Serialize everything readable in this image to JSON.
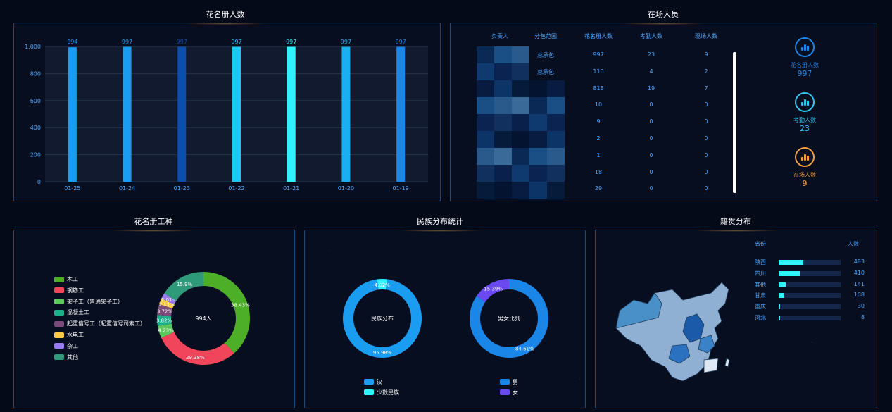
{
  "titles": {
    "roster_count": "花名册人数",
    "onsite": "在场人员",
    "roster_trade": "花名册工种",
    "ethnicity": "民族分布统计",
    "native_place": "籍贯分布"
  },
  "bar_chart": {
    "type": "bar",
    "categories": [
      "01-25",
      "01-24",
      "01-23",
      "01-22",
      "01-21",
      "01-20",
      "01-19"
    ],
    "values": [
      994,
      997,
      997,
      997,
      997,
      997,
      997
    ],
    "y_ticks": [
      "0",
      "200",
      "400",
      "600",
      "800",
      "1,000"
    ],
    "ylim": [
      0,
      1000
    ],
    "colors": [
      "#1a9cf0",
      "#1a9cf0",
      "#0a4fae",
      "#1ac8f5",
      "#2ef3ff",
      "#1ab0f0",
      "#1a86e8"
    ]
  },
  "onsite_table": {
    "headers": [
      "负责人",
      "分包范围",
      "花名册人数",
      "考勤人数",
      "现场人数"
    ],
    "rows": [
      {
        "scope": "总承包",
        "roster": "997",
        "attendance": "23",
        "onsite": "9"
      },
      {
        "scope": "总承包",
        "roster": "110",
        "attendance": "4",
        "onsite": "2"
      },
      {
        "scope": "",
        "roster": "818",
        "attendance": "19",
        "onsite": "7"
      },
      {
        "scope": "",
        "roster": "10",
        "attendance": "0",
        "onsite": "0"
      },
      {
        "scope": "",
        "roster": "9",
        "attendance": "0",
        "onsite": "0"
      },
      {
        "scope": "",
        "roster": "2",
        "attendance": "0",
        "onsite": "0"
      },
      {
        "scope": "",
        "roster": "1",
        "attendance": "0",
        "onsite": "0"
      },
      {
        "scope": "",
        "roster": "18",
        "attendance": "0",
        "onsite": "0"
      },
      {
        "scope": "",
        "roster": "29",
        "attendance": "0",
        "onsite": "0"
      }
    ]
  },
  "stats": [
    {
      "label": "花名册人数",
      "value": "997",
      "color": "#1a86e8"
    },
    {
      "label": "考勤人数",
      "value": "23",
      "color": "#2ec8f0"
    },
    {
      "label": "在场人数",
      "value": "9",
      "color": "#f5a03c"
    }
  ],
  "trade_chart": {
    "type": "pie",
    "center_label": "994人",
    "legend": [
      {
        "name": "木工",
        "color": "#4caf27"
      },
      {
        "name": "钢筋工",
        "color": "#f0455a"
      },
      {
        "name": "架子工（普通架子工）",
        "color": "#5ac85a"
      },
      {
        "name": "混凝土工",
        "color": "#1bb08a"
      },
      {
        "name": "起重信号工（起重信号司索工）",
        "color": "#7a4a7a"
      },
      {
        "name": "水电工",
        "color": "#ffc845"
      },
      {
        "name": "杂工",
        "color": "#9a7af0"
      },
      {
        "name": "其他",
        "color": "#2e9a7a"
      }
    ],
    "slices": [
      {
        "name": "木工",
        "value": 38.43,
        "label": "38.43%",
        "color": "#4caf27"
      },
      {
        "name": "钢筋工",
        "value": 29.38,
        "label": "29.38%",
        "color": "#f0455a"
      },
      {
        "name": "架子工（普通架子工）",
        "value": 4.23,
        "label": "4.23%",
        "color": "#5ac85a"
      },
      {
        "name": "混凝土工",
        "value": 3.82,
        "label": "3.82%",
        "color": "#1bb08a"
      },
      {
        "name": "起重信号工（起重信号司索工）",
        "value": 3.72,
        "label": "3.72%",
        "color": "#7a4a7a"
      },
      {
        "name": "水电工",
        "value": 2.11,
        "label": "2.11%",
        "color": "#ffc845"
      },
      {
        "name": "杂工",
        "value": 2.01,
        "label": "2.01%",
        "color": "#9a7af0"
      },
      {
        "name": "其他",
        "value": 15.9,
        "label": "15.9%",
        "color": "#2e9a7a"
      }
    ]
  },
  "ethnicity_chart": {
    "type": "pie",
    "center_label": "民族分布",
    "slices": [
      {
        "name": "汉",
        "value": 95.98,
        "label": "95.98%",
        "color": "#1a9cf0"
      },
      {
        "name": "少数民族",
        "value": 4.02,
        "label": "4.02%",
        "color": "#2ef3ff"
      }
    ]
  },
  "gender_chart": {
    "type": "pie",
    "center_label": "男女比列",
    "slices": [
      {
        "name": "男",
        "value": 84.61,
        "label": "84.61%",
        "color": "#1a86e8"
      },
      {
        "name": "女",
        "value": 15.39,
        "label": "15.39%",
        "color": "#6a4af0"
      }
    ]
  },
  "native_place": {
    "header_province": "省份",
    "header_count": "人数",
    "rows": [
      {
        "name": "陕西",
        "value": 483
      },
      {
        "name": "四川",
        "value": 410
      },
      {
        "name": "其他",
        "value": 141
      },
      {
        "name": "甘肃",
        "value": 108
      },
      {
        "name": "重庆",
        "value": 30
      },
      {
        "name": "河北",
        "value": 8
      }
    ],
    "max": 1200
  }
}
